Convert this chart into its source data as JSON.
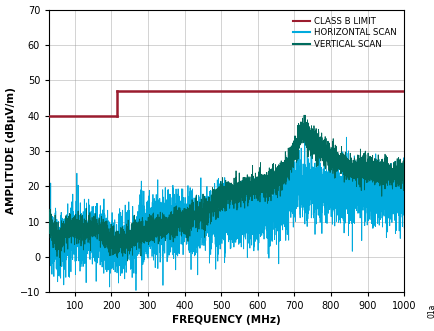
{
  "title": "",
  "xlabel": "FREQUENCY (MHz)",
  "ylabel": "AMPLITUDE (dBµV/m)",
  "xlim": [
    30,
    1000
  ],
  "ylim": [
    -10,
    70
  ],
  "xticks": [
    100,
    200,
    300,
    400,
    500,
    600,
    700,
    800,
    900,
    1000
  ],
  "yticks": [
    -10,
    0,
    10,
    20,
    30,
    40,
    50,
    60,
    70
  ],
  "class_b_limit_color": "#9B1C2E",
  "horizontal_scan_color": "#00AADD",
  "vertical_scan_color": "#006B5E",
  "class_b_segments": [
    {
      "x": [
        30,
        216
      ],
      "y": [
        40,
        40
      ]
    },
    {
      "x": [
        216,
        216
      ],
      "y": [
        40,
        47
      ]
    },
    {
      "x": [
        216,
        1000
      ],
      "y": [
        47,
        47
      ]
    }
  ],
  "legend_labels": [
    "CLASS B LIMIT",
    "HORIZONTAL SCAN",
    "VERTICAL SCAN"
  ],
  "background_color": "#ffffff",
  "grid_color": "#999999"
}
